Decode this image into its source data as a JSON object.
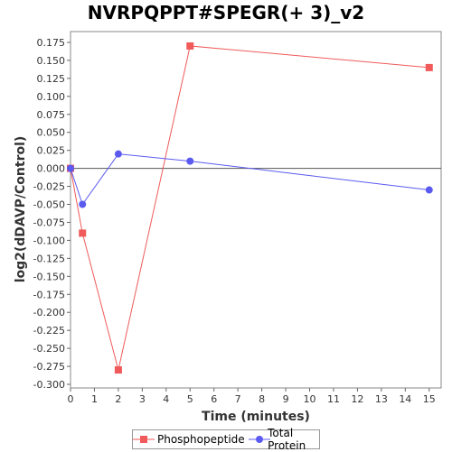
{
  "chart_data": {
    "type": "line",
    "title": "NVRPQPPT#SPEGR(+ 3)_v2",
    "xlabel": "Time (minutes)",
    "ylabel": "log2(dDAVP/Control)",
    "xlim": [
      0,
      15.5
    ],
    "ylim": [
      -0.305,
      0.19
    ],
    "xticks": [
      0,
      1,
      2,
      3,
      4,
      5,
      6,
      7,
      8,
      9,
      10,
      11,
      12,
      13,
      14,
      15
    ],
    "yticks": [
      0.175,
      0.15,
      0.125,
      0.1,
      0.075,
      0.05,
      0.025,
      0.0,
      -0.025,
      -0.05,
      -0.075,
      -0.1,
      -0.125,
      -0.15,
      -0.175,
      -0.2,
      -0.225,
      -0.25,
      -0.275,
      -0.3
    ],
    "ytick_labels": [
      "0.175",
      "0.150",
      "0.125",
      "0.100",
      "0.075",
      "0.050",
      "0.025",
      "0.000",
      "-0.025",
      "-0.050",
      "-0.075",
      "-0.100",
      "-0.125",
      "-0.150",
      "-0.175",
      "-0.200",
      "-0.225",
      "-0.250",
      "-0.275",
      "-0.300"
    ],
    "grid": false,
    "zero_line": true,
    "legend_position": "bottom",
    "series": [
      {
        "name": "Phosphopeptide",
        "color": "#f05a5a",
        "marker": "square",
        "x": [
          0,
          0.5,
          2,
          5,
          15
        ],
        "y": [
          0.0,
          -0.09,
          -0.28,
          0.17,
          0.14
        ]
      },
      {
        "name": "Total Protein",
        "color": "#5a5af0",
        "marker": "circle",
        "x": [
          0,
          0.5,
          2,
          5,
          15
        ],
        "y": [
          0.0,
          -0.05,
          0.02,
          0.01,
          -0.03
        ]
      }
    ]
  }
}
